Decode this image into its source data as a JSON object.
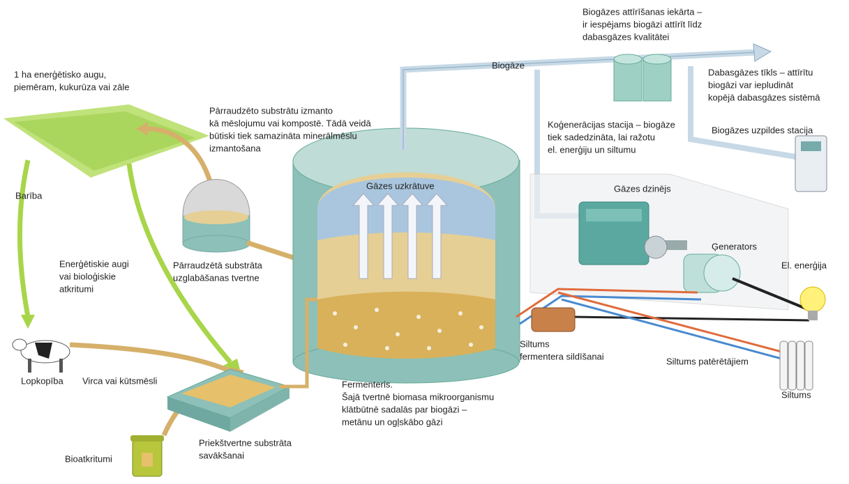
{
  "labels": [
    {
      "lines": [
        "Biogāzes attīrīšanas iekārta –",
        "ir iespējams biogāzi attīrīt līdz",
        "dabasgāzes kvalitātei"
      ]
    },
    {
      "lines": [
        "1 ha enerģētisko augu,",
        "piemēram, kukurūza vai zāle"
      ]
    },
    {
      "lines": [
        "Biogāze"
      ]
    },
    {
      "lines": [
        "Dabasgāzes tīkls – attīrītu",
        "biogāzi var iepludināt",
        "kopējā dabasgāzes sistēmā"
      ]
    },
    {
      "lines": [
        "Pārraudzēto substrātu izmanto",
        "kā mēslojumu vai kompostē. Tādā veidā",
        "būtiski tiek samazināta minerālmēslu",
        "izmantošana"
      ]
    },
    {
      "lines": [
        "Koģenerācijas stacija – biogāze",
        "tiek sadedzināta, lai ražotu",
        "el. enerģiju un siltumu"
      ]
    },
    {
      "lines": [
        "Biogāzes uzpildes stacija"
      ]
    },
    {
      "lines": [
        "Gāzes uzkrātuve"
      ]
    },
    {
      "lines": [
        "Gāzes dzinējs"
      ]
    },
    {
      "lines": [
        "Barība"
      ]
    },
    {
      "lines": [
        "Enerģētiskie augi",
        "vai bioloģiskie",
        "atkritumi"
      ]
    },
    {
      "lines": [
        "Pārraudzētā substrāta",
        "uzglabāšanas tvertne"
      ]
    },
    {
      "lines": [
        "Ģenerators"
      ]
    },
    {
      "lines": [
        "El. enerģija"
      ]
    },
    {
      "lines": [
        "Siltums",
        "fermentera sildīšanai"
      ]
    },
    {
      "lines": [
        "Siltums patērētājiem"
      ]
    },
    {
      "lines": [
        "Lopkopība"
      ]
    },
    {
      "lines": [
        "Virca vai kūtsmēsli"
      ]
    },
    {
      "lines": [
        "Fermenteris.",
        "Šajā tvertnē biomasa mikroorganismu",
        "klātbūtnē sadalās par biogāzi –",
        "metānu un ogļskābo gāzi"
      ]
    },
    {
      "lines": [
        "Siltums"
      ]
    },
    {
      "lines": [
        "Priekštvertne substrāta",
        "savākšanai"
      ]
    },
    {
      "lines": [
        "Bioatkritumi"
      ]
    }
  ]
}
